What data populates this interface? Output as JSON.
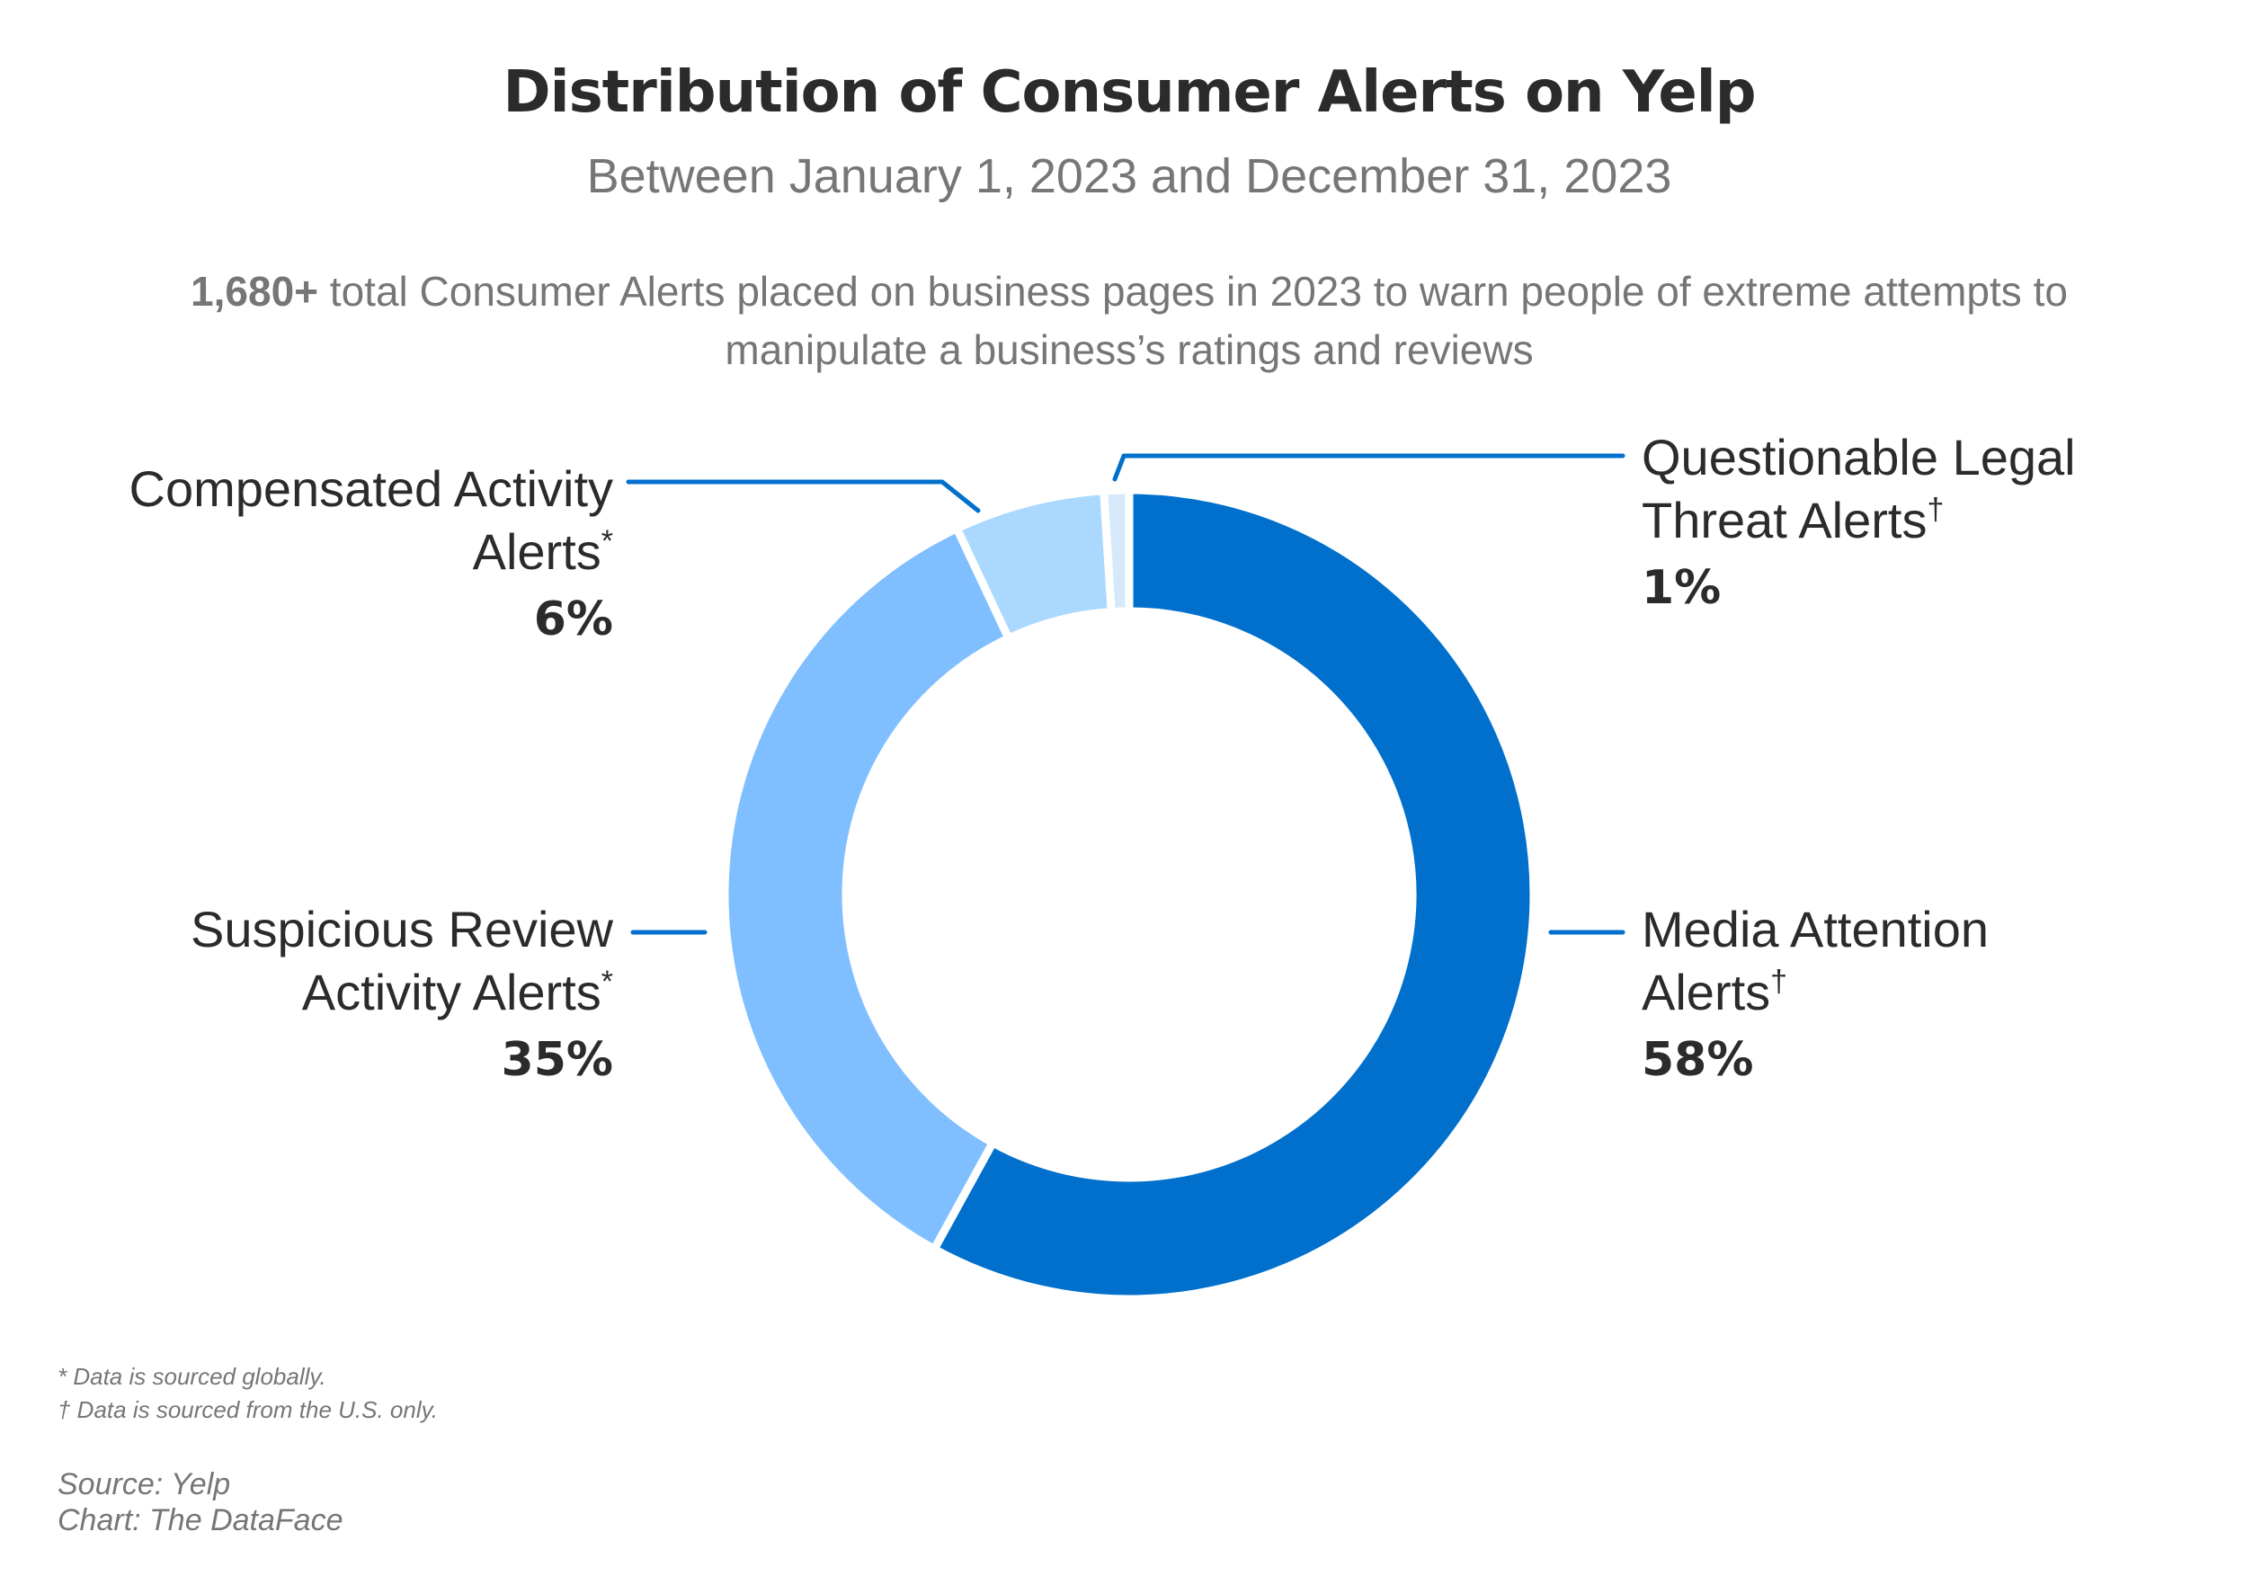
{
  "chart_data": {
    "type": "pie",
    "donut": true,
    "title": "Distribution of Consumer Alerts on Yelp",
    "subtitle": "Between January 1, 2023 and December 31, 2023",
    "description": {
      "bold": "1,680+",
      "line1": " total Consumer Alerts placed on business pages in 2023 to warn people of extreme attempts to",
      "line2": "manipulate a business’s ratings and reviews"
    },
    "slices": [
      {
        "label_line1": "Media Attention",
        "label_line2": "Alerts",
        "mark": "†",
        "value": 58,
        "pct": "58%",
        "color": "#0070CC"
      },
      {
        "label_line1": "Suspicious Review",
        "label_line2": "Activity Alerts",
        "mark": "*",
        "value": 35,
        "pct": "35%",
        "color": "#80BFFF"
      },
      {
        "label_line1": "Compensated Activity",
        "label_line2": "Alerts",
        "mark": "*",
        "value": 6,
        "pct": "6%",
        "color": "#AAD8FF"
      },
      {
        "label_line1": "Questionable Legal",
        "label_line2": "Threat Alerts",
        "mark": "†",
        "value": 1,
        "pct": "1%",
        "color": "#D6E9FB"
      }
    ],
    "footnotes": [
      "* Data is sourced globally.",
      "† Data is sourced from the U.S. only."
    ],
    "source": "Source: Yelp",
    "credit": "Chart: The DataFace"
  }
}
